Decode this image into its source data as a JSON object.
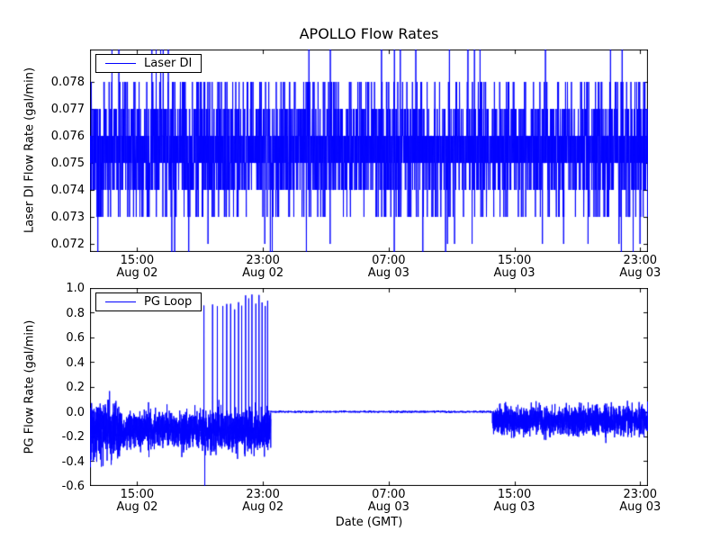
{
  "chart_data": {
    "type": "line",
    "title": "APOLLO Flow Rates",
    "xlabel": "Date (GMT)",
    "line_color": "#0000ff",
    "axes_color": "#000000",
    "background_color": "#ffffff",
    "x_axis": {
      "unit": "hours since Aug 02 00:00 GMT",
      "xlim": [
        12.0,
        47.5
      ],
      "ticks": [
        {
          "hours": 15,
          "time": "15:00",
          "date": "Aug 02"
        },
        {
          "hours": 23,
          "time": "23:00",
          "date": "Aug 02"
        },
        {
          "hours": 31,
          "time": "07:00",
          "date": "Aug 03"
        },
        {
          "hours": 39,
          "time": "15:00",
          "date": "Aug 03"
        },
        {
          "hours": 47,
          "time": "23:00",
          "date": "Aug 03"
        }
      ]
    },
    "charts": [
      {
        "type": "line",
        "name": "laser_di",
        "legend": "Laser DI",
        "legend_position": "upper left",
        "ylabel": "Laser DI Flow Rate (gal/min)",
        "ylim": [
          0.0717,
          0.0792
        ],
        "yticks": [
          {
            "value": 0.072,
            "label": "0.072"
          },
          {
            "value": 0.073,
            "label": "0.073"
          },
          {
            "value": 0.074,
            "label": "0.074"
          },
          {
            "value": 0.075,
            "label": "0.075"
          },
          {
            "value": 0.076,
            "label": "0.076"
          },
          {
            "value": 0.077,
            "label": "0.077"
          },
          {
            "value": 0.078,
            "label": "0.078"
          }
        ],
        "series": {
          "description": "Noisy quantized signal over the full time range; dense solid band between 0.075 and 0.076 gal/min, frequent one-sample excursions to 0.074 and 0.077, occasional excursions to 0.073 and 0.078, rare spikes clipped at the axis limits",
          "sample_count": 3500,
          "levels": [
            0.0712,
            0.072,
            0.073,
            0.074,
            0.075,
            0.076,
            0.077,
            0.078,
            0.0796
          ],
          "level_weights": [
            0.003,
            0.006,
            0.038,
            0.115,
            0.33,
            0.33,
            0.115,
            0.045,
            0.004
          ]
        }
      },
      {
        "type": "line",
        "name": "pg_loop",
        "legend": "PG Loop",
        "legend_position": "upper left",
        "ylabel": "PG Flow Rate (gal/min)",
        "ylim": [
          -0.6,
          1.0
        ],
        "yticks": [
          {
            "value": -0.6,
            "label": "-0.6"
          },
          {
            "value": -0.4,
            "label": "-0.4"
          },
          {
            "value": -0.2,
            "label": "-0.2"
          },
          {
            "value": 0.0,
            "label": "0.0"
          },
          {
            "value": 0.2,
            "label": "0.2"
          },
          {
            "value": 0.4,
            "label": "0.4"
          },
          {
            "value": 0.6,
            "label": "0.6"
          },
          {
            "value": 0.8,
            "label": "0.8"
          },
          {
            "value": 1.0,
            "label": "1.0"
          }
        ],
        "series": {
          "description": "Noise centered near -0.15 from start until ~23:30 Aug 02 (widest at far left with extremes -0.57 to +0.27; repeated sharp spikes to ~0.9 between ~19:00 and ~23:30 Aug 02, one downward spike to axis bottom), then flat at 0.0 until ~13:30 Aug 03, then noise centered near -0.07 through the end",
          "sample_count": 6000,
          "segments": [
            {
              "t_start": 12.0,
              "t_end": 13.9,
              "mean": -0.15,
              "noise_amp": 0.2
            },
            {
              "t_start": 13.9,
              "t_end": 19.2,
              "mean": -0.15,
              "noise_amp": 0.13
            },
            {
              "t_start": 19.2,
              "t_end": 23.5,
              "mean": -0.15,
              "noise_amp": 0.14
            },
            {
              "t_start": 23.5,
              "t_end": 37.6,
              "mean": 0.0,
              "noise_amp": 0.006
            },
            {
              "t_start": 37.6,
              "t_end": 47.5,
              "mean": -0.07,
              "noise_amp": 0.1
            }
          ],
          "spike_times": [
            19.25,
            19.8,
            20.1,
            20.45,
            20.7,
            20.95,
            21.2,
            21.45,
            21.65,
            21.9,
            22.1,
            22.3,
            22.55,
            22.75,
            22.95,
            23.15,
            23.3
          ],
          "spike_height_range": [
            0.82,
            0.95
          ],
          "down_spike": {
            "t": 19.3,
            "value": -0.62
          }
        }
      }
    ]
  }
}
